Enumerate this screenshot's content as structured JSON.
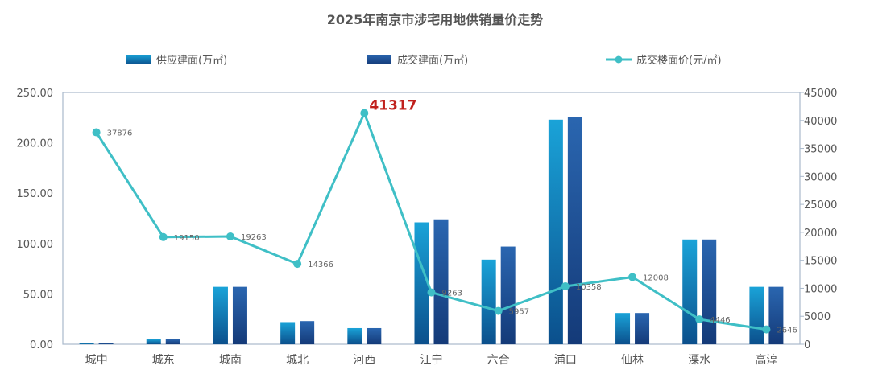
{
  "chart_data": {
    "type": "bar",
    "title": "2025年南京市涉宅用地供销量价走势",
    "categories": [
      "城中",
      "城东",
      "城南",
      "城北",
      "河西",
      "江宁",
      "六合",
      "浦口",
      "仙林",
      "溧水",
      "高淳"
    ],
    "series": [
      {
        "name": "供应建面(万㎡)",
        "type": "bar",
        "axis": "left",
        "values": [
          1,
          5,
          57,
          22,
          16,
          121,
          84,
          223,
          31,
          104,
          57
        ]
      },
      {
        "name": "成交建面(万㎡)",
        "type": "bar",
        "axis": "left",
        "values": [
          1,
          5,
          57,
          23,
          16,
          124,
          97,
          226,
          31,
          104,
          57
        ]
      },
      {
        "name": "成交楼面价(元/㎡)",
        "type": "line",
        "axis": "right",
        "values": [
          37876,
          19150,
          19263,
          14366,
          41317,
          9263,
          5957,
          10358,
          12008,
          4446,
          2646
        ]
      }
    ],
    "line_labels": [
      "37876",
      "19150",
      "19263",
      "14366",
      "41317",
      "9263",
      "5957",
      "10358",
      "12008",
      "4446",
      "2646"
    ],
    "y_left": {
      "ylim": [
        0,
        250
      ],
      "ticks": [
        "0.00",
        "50.00",
        "100.00",
        "150.00",
        "200.00",
        "250.00"
      ]
    },
    "y_right": {
      "ylim": [
        0,
        45000
      ],
      "ticks": [
        "0",
        "5000",
        "10000",
        "15000",
        "20000",
        "25000",
        "30000",
        "35000",
        "40000",
        "45000"
      ]
    },
    "legend_position": "top",
    "highlight": {
      "index": 4,
      "color": "#c0201c"
    },
    "colors": {
      "supply_top": "#1aa3d8",
      "supply_bottom": "#0b4f8c",
      "deal_top": "#2a66b0",
      "deal_bottom": "#143a78",
      "line": "#3fbfc6",
      "axis": "#a9b9cc",
      "text": "#555555",
      "title": "#555555"
    }
  }
}
